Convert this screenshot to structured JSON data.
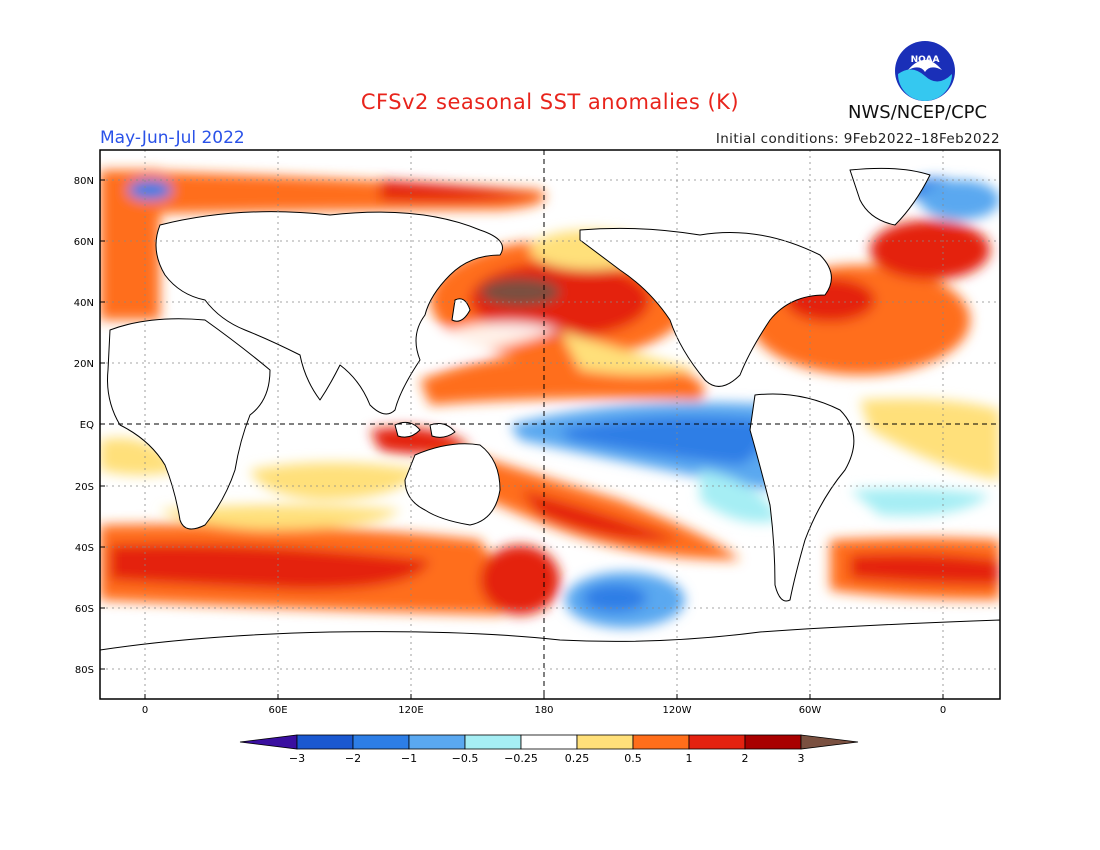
{
  "title": "CFSv2 seasonal SST anomalies (K)",
  "period": "May-Jun-Jul 2022",
  "initial_conditions": "Initial conditions: 9Feb2022–18Feb2022",
  "agency": "NWS/NCEP/CPC",
  "logo_text": "NOAA",
  "lat_labels": [
    "80N",
    "60N",
    "40N",
    "20N",
    "EQ",
    "20S",
    "40S",
    "60S",
    "80S"
  ],
  "lon_labels": [
    "0",
    "60E",
    "120E",
    "180",
    "120W",
    "60W",
    "0"
  ],
  "colorbar": {
    "ticks": [
      "−3",
      "−2",
      "−1",
      "−0.5",
      "−0.25",
      "0.25",
      "0.5",
      "1",
      "2",
      "3"
    ],
    "colors": [
      "#3a0fa0",
      "#1a58d0",
      "#2d7ee6",
      "#5aa8f0",
      "#a6eef4",
      "#ffffff",
      "#ffe07a",
      "#ff6e1a",
      "#e42210",
      "#a80000",
      "#7a5040"
    ]
  },
  "colors": {
    "title": "#e8241c",
    "period": "#2a52e8"
  }
}
